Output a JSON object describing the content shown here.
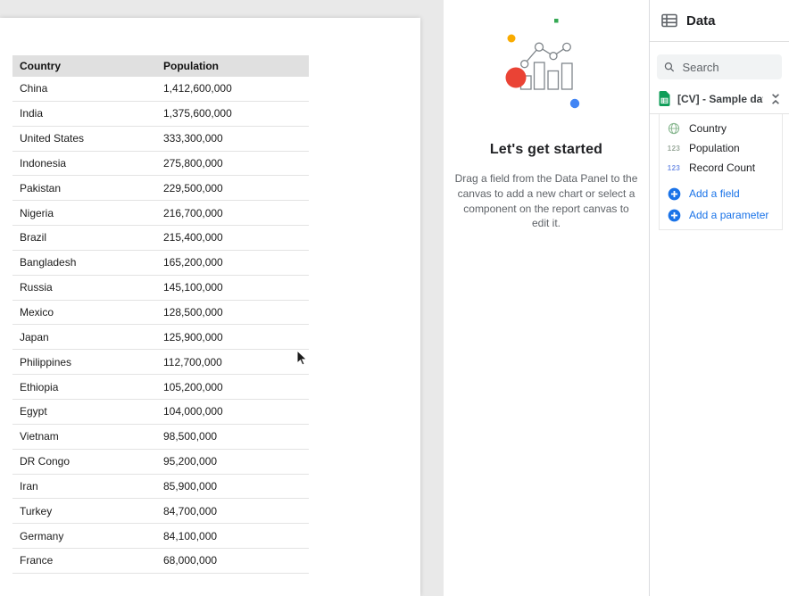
{
  "canvas": {
    "table": {
      "columns": [
        "Country",
        "Population"
      ],
      "rows": [
        [
          "China",
          "1,412,600,000"
        ],
        [
          "India",
          "1,375,600,000"
        ],
        [
          "United States",
          "333,300,000"
        ],
        [
          "Indonesia",
          "275,800,000"
        ],
        [
          "Pakistan",
          "229,500,000"
        ],
        [
          "Nigeria",
          "216,700,000"
        ],
        [
          "Brazil",
          "215,400,000"
        ],
        [
          "Bangladesh",
          "165,200,000"
        ],
        [
          "Russia",
          "145,100,000"
        ],
        [
          "Mexico",
          "128,500,000"
        ],
        [
          "Japan",
          "125,900,000"
        ],
        [
          "Philippines",
          "112,700,000"
        ],
        [
          "Ethiopia",
          "105,200,000"
        ],
        [
          "Egypt",
          "104,000,000"
        ],
        [
          "Vietnam",
          "98,500,000"
        ],
        [
          "DR Congo",
          "95,200,000"
        ],
        [
          "Iran",
          "85,900,000"
        ],
        [
          "Turkey",
          "84,700,000"
        ],
        [
          "Germany",
          "84,100,000"
        ],
        [
          "France",
          "68,000,000"
        ]
      ]
    }
  },
  "getting_started": {
    "title": "Let's get started",
    "description": "Drag a field from the Data Panel to the canvas to add a new chart or select a component on the report canvas to edit it."
  },
  "data_panel": {
    "title": "Data",
    "search_placeholder": "Search",
    "data_source": "[CV] - Sample data ...",
    "fields": [
      {
        "label": "Country",
        "icon": "globe-icon",
        "badge": "",
        "color": "green"
      },
      {
        "label": "Population",
        "icon": "numeric-123-icon",
        "badge": "123",
        "color": "green"
      },
      {
        "label": "Record Count",
        "icon": "numeric-123-icon",
        "badge": "123",
        "color": "blue"
      }
    ],
    "actions": [
      {
        "label": "Add a field",
        "icon": "add-circle-icon"
      },
      {
        "label": "Add a parameter",
        "icon": "add-circle-icon"
      }
    ]
  },
  "colors": {
    "accent_blue": "#1a73e8",
    "google_blue": "#4285f4",
    "google_red": "#ea4335",
    "google_yellow": "#f9ab00",
    "google_green": "#34a853",
    "sheets_green": "#0f9d58",
    "table_header_bg": "#e0e0e0"
  }
}
